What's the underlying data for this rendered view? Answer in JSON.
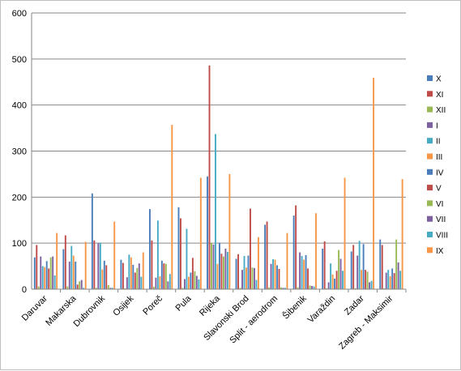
{
  "chart_data": {
    "type": "bar",
    "title": "",
    "xlabel": "",
    "ylabel": "",
    "ylim": [
      0,
      600
    ],
    "yticks": [
      0,
      100,
      200,
      300,
      400,
      500,
      600
    ],
    "grid": true,
    "legend_position": "right",
    "categories": [
      "Daruvar",
      "Makarska",
      "Dubrovnik",
      "Osijek",
      "Poreč",
      "Pula",
      "Rijeka",
      "Slavonski Brod",
      "Split - aerodrom",
      "Šibenik",
      "Varaždin",
      "Zadar",
      "Zagreb - Maksimir"
    ],
    "series": [
      {
        "name": "X",
        "color": "#4a7ebb",
        "values": [
          69,
          87,
          208,
          64,
          174,
          178,
          245,
          66,
          140,
          160,
          88,
          82,
          108
        ]
      },
      {
        "name": "XI",
        "color": "#be4b48",
        "values": [
          96,
          117,
          106,
          57,
          106,
          154,
          486,
          76,
          147,
          182,
          104,
          96,
          96
        ]
      },
      {
        "name": "XII",
        "color": "#98b954",
        "values": [
          6,
          6,
          3,
          2,
          5,
          3,
          100,
          3,
          4,
          4,
          2,
          2,
          2
        ]
      },
      {
        "name": "I",
        "color": "#7d60a0",
        "values": [
          71,
          60,
          100,
          26,
          25,
          22,
          97,
          42,
          55,
          80,
          15,
          73,
          36
        ]
      },
      {
        "name": "II",
        "color": "#46aac5",
        "values": [
          50,
          94,
          101,
          75,
          149,
          131,
          337,
          72,
          65,
          72,
          56,
          105,
          42
        ]
      },
      {
        "name": "III",
        "color": "#f79646",
        "values": [
          48,
          73,
          43,
          69,
          28,
          27,
          55,
          47,
          64,
          64,
          32,
          42,
          28
        ]
      },
      {
        "name": "IV",
        "color": "#4a7ebb",
        "values": [
          61,
          60,
          62,
          53,
          62,
          36,
          101,
          73,
          52,
          74,
          23,
          98,
          45
        ]
      },
      {
        "name": "V",
        "color": "#be4b48",
        "values": [
          45,
          10,
          52,
          36,
          56,
          68,
          77,
          175,
          44,
          45,
          40,
          42,
          35
        ]
      },
      {
        "name": "VI",
        "color": "#98b954",
        "values": [
          69,
          17,
          9,
          46,
          55,
          39,
          71,
          47,
          4,
          8,
          85,
          38,
          108
        ]
      },
      {
        "name": "VII",
        "color": "#7d60a0",
        "values": [
          71,
          20,
          3,
          56,
          17,
          29,
          88,
          46,
          3,
          7,
          66,
          15,
          58
        ]
      },
      {
        "name": "VIII",
        "color": "#46aac5",
        "values": [
          30,
          3,
          3,
          27,
          33,
          21,
          81,
          20,
          3,
          6,
          40,
          18,
          40
        ]
      },
      {
        "name": "IX",
        "color": "#f79646",
        "values": [
          122,
          103,
          147,
          80,
          357,
          242,
          250,
          113,
          122,
          165,
          242,
          459,
          239
        ]
      }
    ]
  }
}
